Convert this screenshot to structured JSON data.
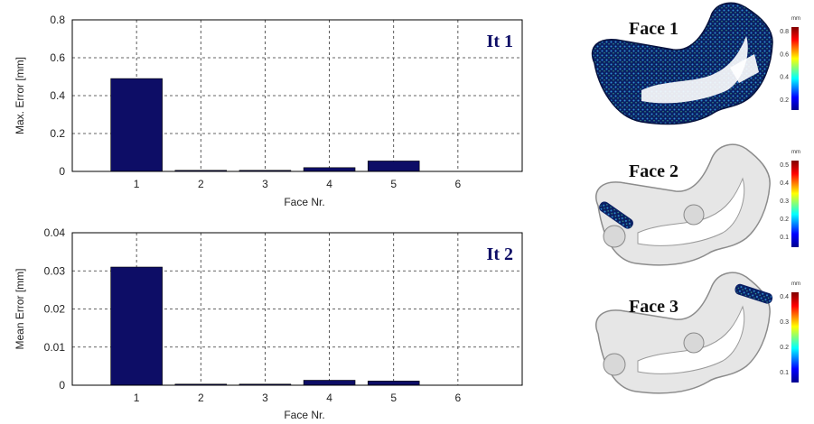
{
  "chart_data": [
    {
      "type": "bar",
      "title": "",
      "annotation": "It 1",
      "xlabel": "Face Nr.",
      "ylabel": "Max. Error [mm]",
      "categories": [
        "1",
        "2",
        "3",
        "4",
        "5",
        "6"
      ],
      "values": [
        0.49,
        0.002,
        0.002,
        0.02,
        0.055,
        0
      ],
      "ylim": [
        0,
        0.8
      ],
      "yticks": [
        "0",
        "0.2",
        "0.4",
        "0.6",
        "0.8"
      ],
      "grid": true,
      "color": "#0d0d66"
    },
    {
      "type": "bar",
      "title": "",
      "annotation": "It 2",
      "xlabel": "Face Nr.",
      "ylabel": "Mean Error [mm]",
      "categories": [
        "1",
        "2",
        "3",
        "4",
        "5",
        "6"
      ],
      "values": [
        0.031,
        0.0002,
        0.0002,
        0.0013,
        0.0011,
        0
      ],
      "ylim": [
        0,
        0.04
      ],
      "yticks": [
        "0",
        "0.01",
        "0.02",
        "0.03",
        "0.04"
      ],
      "grid": true,
      "color": "#0d0d66"
    }
  ],
  "renders": [
    {
      "label": "Face 1",
      "colorbar_ticks": [
        "0.8",
        "0.6",
        "0.4",
        "0.2"
      ],
      "colorbar_unit": "mm"
    },
    {
      "label": "Face 2",
      "colorbar_ticks": [
        "0.5",
        "0.4",
        "0.3",
        "0.2",
        "0.1"
      ],
      "colorbar_unit": "mm"
    },
    {
      "label": "Face 3",
      "colorbar_ticks": [
        "0.4",
        "0.3",
        "0.2",
        "0.1"
      ],
      "colorbar_unit": "mm"
    }
  ]
}
